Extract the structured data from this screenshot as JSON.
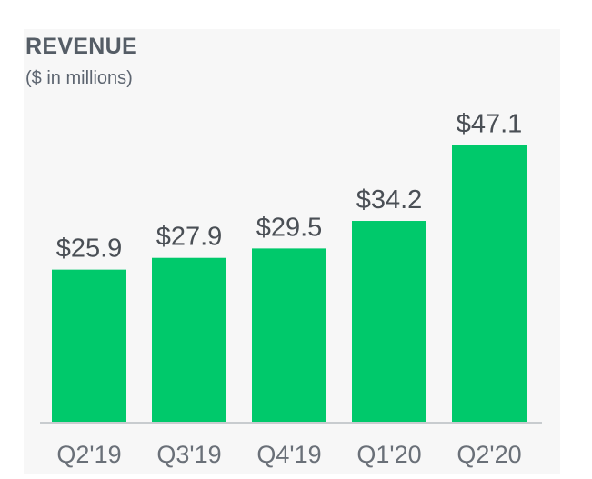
{
  "chart_data": {
    "type": "bar",
    "title": "REVENUE",
    "subtitle": "($ in millions)",
    "categories": [
      "Q2'19",
      "Q3'19",
      "Q4'19",
      "Q1'20",
      "Q2'20"
    ],
    "values": [
      25.9,
      27.9,
      29.5,
      34.2,
      47.1
    ],
    "value_labels": [
      "$25.9",
      "$27.9",
      "$29.5",
      "$34.2",
      "$47.1"
    ],
    "xlabel": "",
    "ylabel": "",
    "ylim": [
      0,
      52
    ],
    "grid": false,
    "legend": "none",
    "bar_color": "#00c96b",
    "baseline_color": "#c8cccf",
    "label_color": "#4a4f55",
    "tick_color": "#6a7078"
  }
}
